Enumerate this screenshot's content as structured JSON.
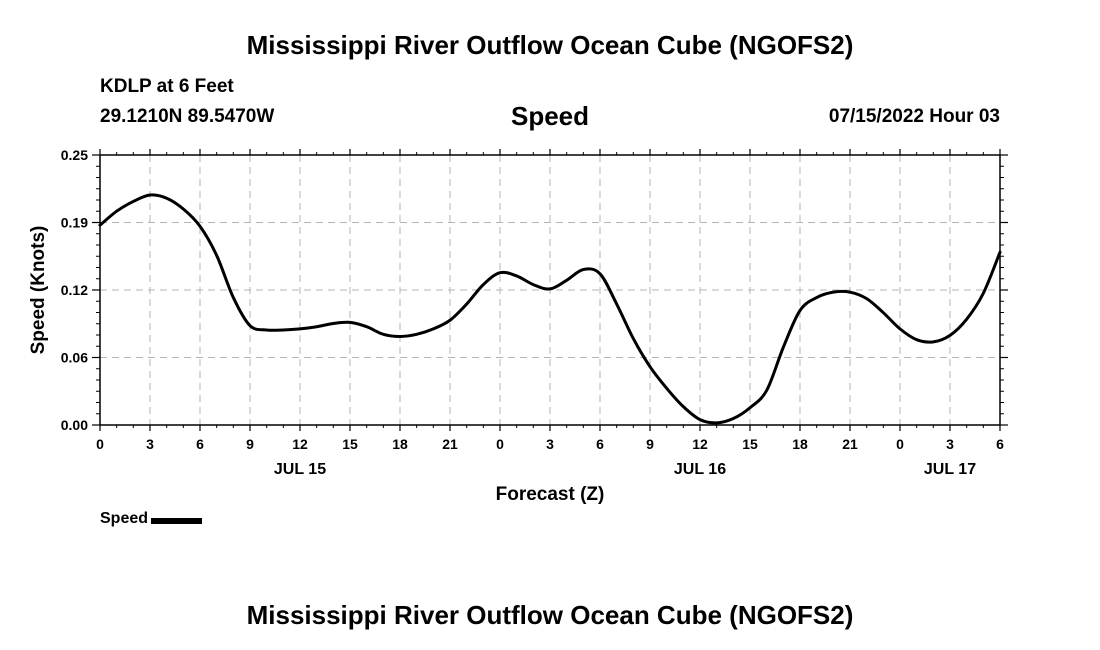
{
  "header": {
    "title": "Mississippi River Outflow Ocean Cube (NGOFS2)",
    "station": "KDLP at 6 Feet",
    "coordinates": "29.1210N  89.5470W",
    "subtitle": "Speed",
    "datetime": "07/15/2022 Hour 03"
  },
  "footer": {
    "title": "Mississippi River Outflow Ocean Cube (NGOFS2)"
  },
  "legend": {
    "label": "Speed"
  },
  "colors": {
    "line": "#000000",
    "grid": "#b4b4b4"
  },
  "chart_data": {
    "type": "line",
    "title": "Speed",
    "xlabel": "Forecast (Z)",
    "ylabel": "Speed (Knots)",
    "xlim": [
      0,
      54
    ],
    "ylim": [
      0.0,
      0.25
    ],
    "grid": true,
    "x_tick_values": [
      0,
      3,
      6,
      9,
      12,
      15,
      18,
      21,
      24,
      27,
      30,
      33,
      36,
      39,
      42,
      45,
      48,
      51,
      54
    ],
    "x_tick_labels": [
      "0",
      "3",
      "6",
      "9",
      "12",
      "15",
      "18",
      "21",
      "0",
      "3",
      "6",
      "9",
      "12",
      "15",
      "18",
      "21",
      "0",
      "3",
      "6"
    ],
    "y_tick_values": [
      0.0,
      0.0625,
      0.125,
      0.1875,
      0.25
    ],
    "y_tick_labels": [
      "0.00",
      "0.06",
      "0.12",
      "0.19",
      "0.25"
    ],
    "date_labels": [
      {
        "x": 12,
        "label": "JUL 15"
      },
      {
        "x": 36,
        "label": "JUL 16"
      },
      {
        "x": 51,
        "label": "JUL 17"
      }
    ],
    "series": [
      {
        "name": "Speed",
        "x": [
          0,
          1,
          2,
          3,
          4,
          5,
          6,
          7,
          8,
          9,
          10,
          11,
          12,
          13,
          14,
          15,
          16,
          17,
          18,
          19,
          20,
          21,
          22,
          23,
          24,
          25,
          26,
          27,
          28,
          29,
          30,
          31,
          32,
          33,
          34,
          35,
          36,
          37,
          38,
          39,
          40,
          41,
          42,
          43,
          44,
          45,
          46,
          47,
          48,
          49,
          50,
          51,
          52,
          53,
          54
        ],
        "values": [
          0.185,
          0.198,
          0.207,
          0.213,
          0.21,
          0.2,
          0.184,
          0.157,
          0.118,
          0.092,
          0.088,
          0.088,
          0.089,
          0.091,
          0.094,
          0.095,
          0.091,
          0.084,
          0.082,
          0.084,
          0.089,
          0.097,
          0.112,
          0.13,
          0.141,
          0.138,
          0.13,
          0.126,
          0.134,
          0.144,
          0.14,
          0.112,
          0.08,
          0.054,
          0.034,
          0.017,
          0.005,
          0.002,
          0.006,
          0.016,
          0.032,
          0.072,
          0.106,
          0.118,
          0.123,
          0.123,
          0.117,
          0.104,
          0.089,
          0.079,
          0.077,
          0.083,
          0.098,
          0.122,
          0.16
        ]
      }
    ]
  }
}
